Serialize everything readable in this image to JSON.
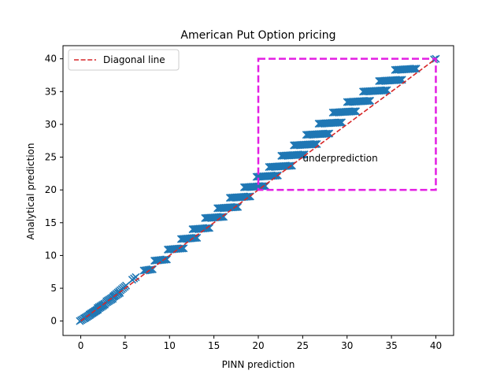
{
  "chart_data": {
    "type": "scatter",
    "title": "American Put Option pricing",
    "xlabel": "PINN prediction",
    "ylabel": "Analytical prediction",
    "xlim": [
      -2,
      42
    ],
    "ylim": [
      -2.2,
      42
    ],
    "xticks": [
      0,
      5,
      10,
      15,
      20,
      25,
      30,
      35,
      40
    ],
    "yticks": [
      0,
      5,
      10,
      15,
      20,
      25,
      30,
      35,
      40
    ],
    "grid": false,
    "legend": {
      "placement": "top-left",
      "entries": [
        "Diagonal line"
      ]
    },
    "series": [
      {
        "marker": "x",
        "color": "#1f77b4",
        "clusters": [
          {
            "x0": -0.1,
            "x1": 1.0,
            "y0": 0.0,
            "y1": 0.9
          },
          {
            "x0": 0.4,
            "x1": 1.9,
            "y0": 0.4,
            "y1": 1.7
          },
          {
            "x0": 1.0,
            "x1": 2.7,
            "y0": 1.0,
            "y1": 2.5
          },
          {
            "x0": 1.9,
            "x1": 3.6,
            "y0": 2.0,
            "y1": 3.4
          },
          {
            "x0": 2.9,
            "x1": 4.4,
            "y0": 3.0,
            "y1": 4.3
          },
          {
            "x0": 3.7,
            "x1": 5.1,
            "y0": 3.8,
            "y1": 5.4
          },
          {
            "x0": 5.8,
            "x1": 6.2,
            "y0": 6.3,
            "y1": 6.7
          },
          {
            "x0": 7.1,
            "x1": 8.1,
            "y0": 7.7,
            "y1": 7.9
          },
          {
            "x0": 8.3,
            "x1": 9.7,
            "y0": 9.2,
            "y1": 9.4
          },
          {
            "x0": 9.8,
            "x1": 11.6,
            "y0": 10.9,
            "y1": 11.1
          },
          {
            "x0": 11.3,
            "x1": 13.1,
            "y0": 12.5,
            "y1": 12.7
          },
          {
            "x0": 12.6,
            "x1": 14.5,
            "y0": 14.0,
            "y1": 14.2
          },
          {
            "x0": 14.0,
            "x1": 16.1,
            "y0": 15.7,
            "y1": 15.9
          },
          {
            "x0": 15.4,
            "x1": 17.7,
            "y0": 17.2,
            "y1": 17.4
          },
          {
            "x0": 16.8,
            "x1": 19.1,
            "y0": 18.8,
            "y1": 19.0
          },
          {
            "x0": 18.4,
            "x1": 20.8,
            "y0": 20.4,
            "y1": 20.6
          },
          {
            "x0": 19.8,
            "x1": 22.2,
            "y0": 22.0,
            "y1": 22.2
          },
          {
            "x0": 21.2,
            "x1": 23.8,
            "y0": 23.5,
            "y1": 23.7
          },
          {
            "x0": 22.6,
            "x1": 25.2,
            "y0": 25.2,
            "y1": 25.4
          },
          {
            "x0": 24.0,
            "x1": 26.6,
            "y0": 26.8,
            "y1": 27.0
          },
          {
            "x0": 25.4,
            "x1": 28.0,
            "y0": 28.4,
            "y1": 28.6
          },
          {
            "x0": 26.8,
            "x1": 29.4,
            "y0": 30.1,
            "y1": 30.3
          },
          {
            "x0": 28.4,
            "x1": 31.0,
            "y0": 31.8,
            "y1": 32.0
          },
          {
            "x0": 30.0,
            "x1": 32.6,
            "y0": 33.4,
            "y1": 33.6
          },
          {
            "x0": 31.8,
            "x1": 34.5,
            "y0": 35.0,
            "y1": 35.2
          },
          {
            "x0": 33.6,
            "x1": 36.2,
            "y0": 36.6,
            "y1": 36.8
          },
          {
            "x0": 35.4,
            "x1": 37.8,
            "y0": 38.3,
            "y1": 38.5
          },
          {
            "x0": 39.8,
            "x1": 40.0,
            "y0": 39.9,
            "y1": 40.0
          }
        ]
      }
    ],
    "diagonal": {
      "name": "Diagonal line",
      "color": "#d62728",
      "style": "dashed",
      "from": [
        0,
        0
      ],
      "to": [
        40,
        40
      ]
    },
    "highlight_box": {
      "x0": 20,
      "x1": 40,
      "y0": 20,
      "y1": 40,
      "color": "#e31ee3",
      "style": "dashed"
    },
    "annotations": [
      {
        "text": "underprediction",
        "x": 25,
        "y": 24.8
      }
    ]
  }
}
